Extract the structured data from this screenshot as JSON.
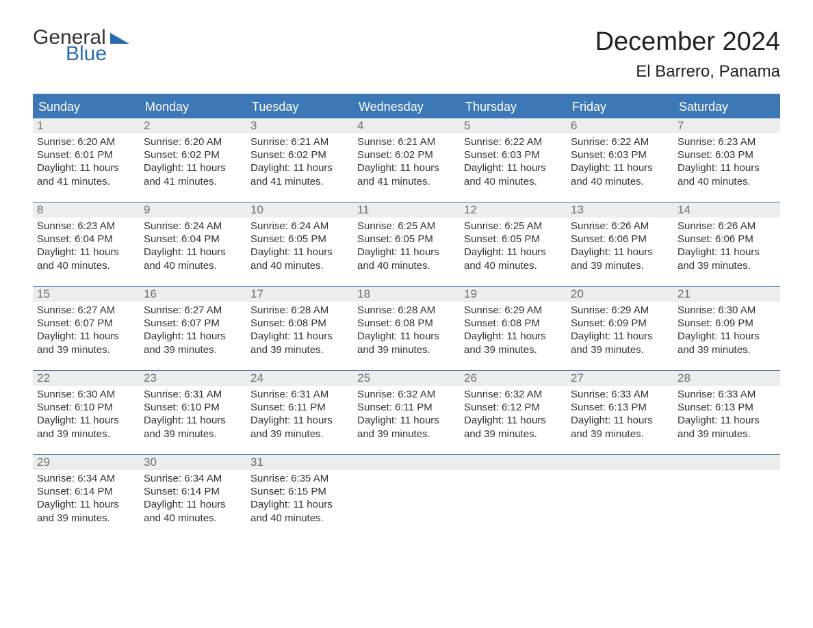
{
  "logo": {
    "general": "General",
    "blue": "Blue"
  },
  "title": "December 2024",
  "location": "El Barrero, Panama",
  "colors": {
    "accent": "#3b78b5",
    "headerText": "#ffffff",
    "dayNumBg": "#eceded",
    "dayNumText": "#6e6e6e",
    "bodyText": "#333333",
    "logoBlue": "#2a6db0"
  },
  "dayNames": [
    "Sunday",
    "Monday",
    "Tuesday",
    "Wednesday",
    "Thursday",
    "Friday",
    "Saturday"
  ],
  "weeks": [
    [
      {
        "n": "1",
        "sunrise": "Sunrise: 6:20 AM",
        "sunset": "Sunset: 6:01 PM",
        "dl1": "Daylight: 11 hours",
        "dl2": "and 41 minutes."
      },
      {
        "n": "2",
        "sunrise": "Sunrise: 6:20 AM",
        "sunset": "Sunset: 6:02 PM",
        "dl1": "Daylight: 11 hours",
        "dl2": "and 41 minutes."
      },
      {
        "n": "3",
        "sunrise": "Sunrise: 6:21 AM",
        "sunset": "Sunset: 6:02 PM",
        "dl1": "Daylight: 11 hours",
        "dl2": "and 41 minutes."
      },
      {
        "n": "4",
        "sunrise": "Sunrise: 6:21 AM",
        "sunset": "Sunset: 6:02 PM",
        "dl1": "Daylight: 11 hours",
        "dl2": "and 41 minutes."
      },
      {
        "n": "5",
        "sunrise": "Sunrise: 6:22 AM",
        "sunset": "Sunset: 6:03 PM",
        "dl1": "Daylight: 11 hours",
        "dl2": "and 40 minutes."
      },
      {
        "n": "6",
        "sunrise": "Sunrise: 6:22 AM",
        "sunset": "Sunset: 6:03 PM",
        "dl1": "Daylight: 11 hours",
        "dl2": "and 40 minutes."
      },
      {
        "n": "7",
        "sunrise": "Sunrise: 6:23 AM",
        "sunset": "Sunset: 6:03 PM",
        "dl1": "Daylight: 11 hours",
        "dl2": "and 40 minutes."
      }
    ],
    [
      {
        "n": "8",
        "sunrise": "Sunrise: 6:23 AM",
        "sunset": "Sunset: 6:04 PM",
        "dl1": "Daylight: 11 hours",
        "dl2": "and 40 minutes."
      },
      {
        "n": "9",
        "sunrise": "Sunrise: 6:24 AM",
        "sunset": "Sunset: 6:04 PM",
        "dl1": "Daylight: 11 hours",
        "dl2": "and 40 minutes."
      },
      {
        "n": "10",
        "sunrise": "Sunrise: 6:24 AM",
        "sunset": "Sunset: 6:05 PM",
        "dl1": "Daylight: 11 hours",
        "dl2": "and 40 minutes."
      },
      {
        "n": "11",
        "sunrise": "Sunrise: 6:25 AM",
        "sunset": "Sunset: 6:05 PM",
        "dl1": "Daylight: 11 hours",
        "dl2": "and 40 minutes."
      },
      {
        "n": "12",
        "sunrise": "Sunrise: 6:25 AM",
        "sunset": "Sunset: 6:05 PM",
        "dl1": "Daylight: 11 hours",
        "dl2": "and 40 minutes."
      },
      {
        "n": "13",
        "sunrise": "Sunrise: 6:26 AM",
        "sunset": "Sunset: 6:06 PM",
        "dl1": "Daylight: 11 hours",
        "dl2": "and 39 minutes."
      },
      {
        "n": "14",
        "sunrise": "Sunrise: 6:26 AM",
        "sunset": "Sunset: 6:06 PM",
        "dl1": "Daylight: 11 hours",
        "dl2": "and 39 minutes."
      }
    ],
    [
      {
        "n": "15",
        "sunrise": "Sunrise: 6:27 AM",
        "sunset": "Sunset: 6:07 PM",
        "dl1": "Daylight: 11 hours",
        "dl2": "and 39 minutes."
      },
      {
        "n": "16",
        "sunrise": "Sunrise: 6:27 AM",
        "sunset": "Sunset: 6:07 PM",
        "dl1": "Daylight: 11 hours",
        "dl2": "and 39 minutes."
      },
      {
        "n": "17",
        "sunrise": "Sunrise: 6:28 AM",
        "sunset": "Sunset: 6:08 PM",
        "dl1": "Daylight: 11 hours",
        "dl2": "and 39 minutes."
      },
      {
        "n": "18",
        "sunrise": "Sunrise: 6:28 AM",
        "sunset": "Sunset: 6:08 PM",
        "dl1": "Daylight: 11 hours",
        "dl2": "and 39 minutes."
      },
      {
        "n": "19",
        "sunrise": "Sunrise: 6:29 AM",
        "sunset": "Sunset: 6:08 PM",
        "dl1": "Daylight: 11 hours",
        "dl2": "and 39 minutes."
      },
      {
        "n": "20",
        "sunrise": "Sunrise: 6:29 AM",
        "sunset": "Sunset: 6:09 PM",
        "dl1": "Daylight: 11 hours",
        "dl2": "and 39 minutes."
      },
      {
        "n": "21",
        "sunrise": "Sunrise: 6:30 AM",
        "sunset": "Sunset: 6:09 PM",
        "dl1": "Daylight: 11 hours",
        "dl2": "and 39 minutes."
      }
    ],
    [
      {
        "n": "22",
        "sunrise": "Sunrise: 6:30 AM",
        "sunset": "Sunset: 6:10 PM",
        "dl1": "Daylight: 11 hours",
        "dl2": "and 39 minutes."
      },
      {
        "n": "23",
        "sunrise": "Sunrise: 6:31 AM",
        "sunset": "Sunset: 6:10 PM",
        "dl1": "Daylight: 11 hours",
        "dl2": "and 39 minutes."
      },
      {
        "n": "24",
        "sunrise": "Sunrise: 6:31 AM",
        "sunset": "Sunset: 6:11 PM",
        "dl1": "Daylight: 11 hours",
        "dl2": "and 39 minutes."
      },
      {
        "n": "25",
        "sunrise": "Sunrise: 6:32 AM",
        "sunset": "Sunset: 6:11 PM",
        "dl1": "Daylight: 11 hours",
        "dl2": "and 39 minutes."
      },
      {
        "n": "26",
        "sunrise": "Sunrise: 6:32 AM",
        "sunset": "Sunset: 6:12 PM",
        "dl1": "Daylight: 11 hours",
        "dl2": "and 39 minutes."
      },
      {
        "n": "27",
        "sunrise": "Sunrise: 6:33 AM",
        "sunset": "Sunset: 6:13 PM",
        "dl1": "Daylight: 11 hours",
        "dl2": "and 39 minutes."
      },
      {
        "n": "28",
        "sunrise": "Sunrise: 6:33 AM",
        "sunset": "Sunset: 6:13 PM",
        "dl1": "Daylight: 11 hours",
        "dl2": "and 39 minutes."
      }
    ],
    [
      {
        "n": "29",
        "sunrise": "Sunrise: 6:34 AM",
        "sunset": "Sunset: 6:14 PM",
        "dl1": "Daylight: 11 hours",
        "dl2": "and 39 minutes."
      },
      {
        "n": "30",
        "sunrise": "Sunrise: 6:34 AM",
        "sunset": "Sunset: 6:14 PM",
        "dl1": "Daylight: 11 hours",
        "dl2": "and 40 minutes."
      },
      {
        "n": "31",
        "sunrise": "Sunrise: 6:35 AM",
        "sunset": "Sunset: 6:15 PM",
        "dl1": "Daylight: 11 hours",
        "dl2": "and 40 minutes."
      },
      {
        "empty": true
      },
      {
        "empty": true
      },
      {
        "empty": true
      },
      {
        "empty": true
      }
    ]
  ]
}
